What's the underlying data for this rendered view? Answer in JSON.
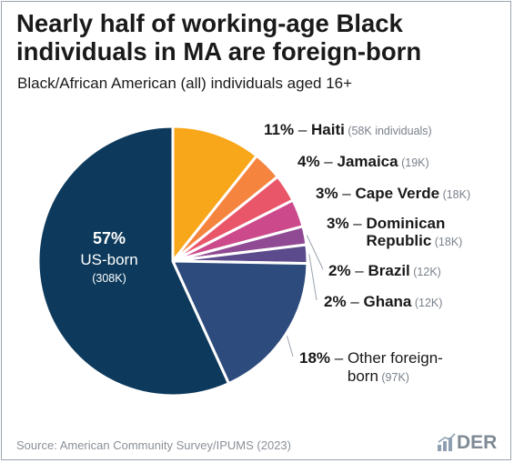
{
  "title": "Nearly half of working-age Black individuals in MA are foreign-born",
  "subtitle": "Black/African American (all) individuals aged 16+",
  "source": "Source: American Community Survey/IPUMS (2023)",
  "logo": {
    "text": "DER",
    "icon": "bar-chart-icon"
  },
  "colors": {
    "background": "#ffffff",
    "text": "#1a1a1a",
    "muted": "#8a9199"
  },
  "chart_data": {
    "type": "pie",
    "title": "Nearly half of working-age Black individuals in MA are foreign-born",
    "slices": [
      {
        "pct": "57%",
        "lines": [
          "US-born"
        ],
        "count": "(308K)",
        "value": 308,
        "color": "#0d3a5c"
      },
      {
        "pct": "11%",
        "lines": [
          "Haiti"
        ],
        "count": "(58K individuals)",
        "value": 58,
        "color": "#f9a71a"
      },
      {
        "pct": "4%",
        "lines": [
          "Jamaica"
        ],
        "count": "(19K)",
        "value": 19,
        "color": "#f5843f"
      },
      {
        "pct": "3%",
        "lines": [
          "Cape Verde"
        ],
        "count": "(18K)",
        "value": 18,
        "color": "#e9566a"
      },
      {
        "pct": "3%",
        "lines": [
          "Dominican",
          "Republic"
        ],
        "count": "(18K)",
        "value": 18,
        "color": "#cc4a8c"
      },
      {
        "pct": "2%",
        "lines": [
          "Brazil"
        ],
        "count": "(12K)",
        "value": 12,
        "color": "#8f4a93"
      },
      {
        "pct": "2%",
        "lines": [
          "Ghana"
        ],
        "count": "(12K)",
        "value": 12,
        "color": "#5b4a8c"
      },
      {
        "pct": "18%",
        "lines": [
          "Other foreign-",
          "born"
        ],
        "count": "(97K)",
        "value": 97,
        "color": "#2d4b7c"
      }
    ]
  }
}
